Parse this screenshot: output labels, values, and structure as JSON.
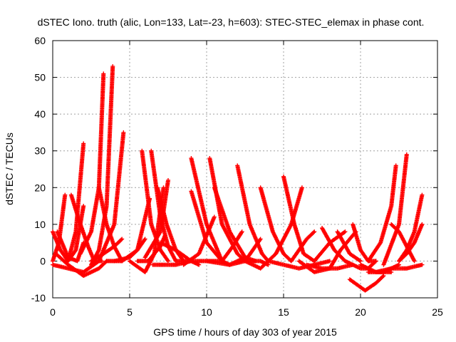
{
  "chart_data": {
    "type": "scatter",
    "title": "dSTEC Iono. truth (alic, Lon=133, Lat=-23, h=603): STEC-STEC_elemax in phase cont.",
    "xlabel": "GPS time / hours of day 303 of year 2015",
    "ylabel": "dSTEC  / TECUs",
    "xlim": [
      0,
      25
    ],
    "ylim": [
      -10,
      60
    ],
    "xticks": [
      "0",
      "5",
      "10",
      "15",
      "20",
      "25"
    ],
    "yticks": [
      "-10",
      "0",
      "10",
      "20",
      "30",
      "40",
      "50",
      "60"
    ],
    "grid": true,
    "marker": "plus",
    "color": "#ff0000",
    "series": [
      {
        "x": [
          0.0,
          0.5,
          1.0,
          1.5,
          2.0
        ],
        "y": [
          8,
          3,
          0,
          3,
          15
        ]
      },
      {
        "x": [
          0.0,
          0.4,
          0.8
        ],
        "y": [
          0,
          5,
          18
        ]
      },
      {
        "x": [
          0.3,
          1.0,
          1.6,
          2.0
        ],
        "y": [
          8,
          1,
          0,
          5
        ]
      },
      {
        "x": [
          0.0,
          1.0,
          2.0,
          3.0,
          4.0,
          4.6
        ],
        "y": [
          -1,
          -2,
          -3,
          0,
          10,
          35
        ]
      },
      {
        "x": [
          0.2,
          1.0,
          2.0,
          3.0,
          3.5
        ],
        "y": [
          2,
          -1,
          -4,
          -2,
          0
        ]
      },
      {
        "x": [
          1.2,
          1.8,
          2.3,
          2.7,
          3.2
        ],
        "y": [
          18,
          10,
          4,
          0,
          0
        ]
      },
      {
        "x": [
          1.0,
          1.5,
          2.0
        ],
        "y": [
          0,
          8,
          32
        ]
      },
      {
        "x": [
          1.8,
          2.5,
          3.0,
          3.3
        ],
        "y": [
          2,
          8,
          20,
          51
        ]
      },
      {
        "x": [
          2.5,
          3.0,
          3.5,
          3.9
        ],
        "y": [
          -1,
          3,
          15,
          53
        ]
      },
      {
        "x": [
          2.5,
          3.3,
          4.0,
          4.5
        ],
        "y": [
          0,
          2,
          4,
          6
        ]
      },
      {
        "x": [
          3.0,
          3.5,
          4.0,
          4.5
        ],
        "y": [
          20,
          10,
          4,
          0
        ]
      },
      {
        "x": [
          3.5,
          4.5,
          5.5,
          6.3
        ],
        "y": [
          0,
          0,
          3,
          17
        ]
      },
      {
        "x": [
          4.0,
          5.0,
          5.5,
          6.0
        ],
        "y": [
          0,
          1,
          3,
          6
        ]
      },
      {
        "x": [
          5.8,
          6.4,
          7.0,
          7.5
        ],
        "y": [
          30,
          10,
          3,
          0
        ]
      },
      {
        "x": [
          6.4,
          7.0,
          7.5,
          8.0
        ],
        "y": [
          30,
          12,
          4,
          0
        ]
      },
      {
        "x": [
          5.0,
          6.0,
          6.6,
          7.2
        ],
        "y": [
          0,
          -3,
          2,
          20
        ]
      },
      {
        "x": [
          6.8,
          7.4,
          8.0,
          8.5
        ],
        "y": [
          20,
          10,
          3,
          0
        ]
      },
      {
        "x": [
          6.0,
          7.0,
          7.5
        ],
        "y": [
          1,
          8,
          22
        ]
      },
      {
        "x": [
          5.5,
          6.2,
          7.0,
          7.3
        ],
        "y": [
          0,
          0,
          4,
          7
        ]
      },
      {
        "x": [
          6.5,
          8.0,
          9.0
        ],
        "y": [
          -1,
          -1,
          0
        ]
      },
      {
        "x": [
          7.0,
          8.0,
          9.0,
          9.5
        ],
        "y": [
          5,
          3,
          0,
          -1
        ]
      },
      {
        "x": [
          8.0,
          9.0,
          10.0,
          11.0
        ],
        "y": [
          0,
          0,
          0,
          0
        ]
      },
      {
        "x": [
          9.0,
          10.0,
          11.0
        ],
        "y": [
          28,
          10,
          0
        ]
      },
      {
        "x": [
          9.0,
          10.0,
          11.0,
          11.5
        ],
        "y": [
          19,
          5,
          0,
          -1
        ]
      },
      {
        "x": [
          8.5,
          9.5,
          10.5
        ],
        "y": [
          -1,
          2,
          12
        ]
      },
      {
        "x": [
          10.2,
          11.0,
          12.0,
          12.5
        ],
        "y": [
          28,
          10,
          2,
          0
        ]
      },
      {
        "x": [
          10.5,
          11.5,
          12.5,
          13.2
        ],
        "y": [
          20,
          8,
          1,
          0
        ]
      },
      {
        "x": [
          10.0,
          11.5,
          12.5
        ],
        "y": [
          0,
          -1,
          1
        ]
      },
      {
        "x": [
          11.0,
          11.7,
          12.3
        ],
        "y": [
          0,
          4,
          8
        ]
      },
      {
        "x": [
          11.5,
          12.5,
          13.5,
          14.0
        ],
        "y": [
          -1,
          0,
          0,
          -1
        ]
      },
      {
        "x": [
          12.0,
          12.8,
          13.6,
          14.0
        ],
        "y": [
          26,
          10,
          2,
          0
        ]
      },
      {
        "x": [
          12.5,
          13.0,
          13.5
        ],
        "y": [
          0,
          3,
          6
        ]
      },
      {
        "x": [
          13.5,
          14.3,
          15.0,
          15.5
        ],
        "y": [
          20,
          8,
          2,
          0
        ]
      },
      {
        "x": [
          12.5,
          13.5,
          14.5,
          15.5,
          16.2
        ],
        "y": [
          0,
          -2,
          2,
          10,
          20
        ]
      },
      {
        "x": [
          15.0,
          15.7,
          16.3,
          17.0
        ],
        "y": [
          23,
          10,
          2,
          0
        ]
      },
      {
        "x": [
          15.5,
          16.0,
          16.5,
          17.0
        ],
        "y": [
          0,
          3,
          6,
          8
        ]
      },
      {
        "x": [
          14.0,
          15.0,
          16.0,
          17.0,
          18.0
        ],
        "y": [
          0,
          -1,
          -2,
          -1,
          0
        ]
      },
      {
        "x": [
          16.0,
          17.0,
          18.0
        ],
        "y": [
          0,
          -3,
          -2
        ]
      },
      {
        "x": [
          16.5,
          17.5,
          18.5,
          19.5
        ],
        "y": [
          -1,
          -2,
          -2,
          -1
        ]
      },
      {
        "x": [
          17.5,
          18.3,
          19.0
        ],
        "y": [
          9,
          3,
          0
        ]
      },
      {
        "x": [
          18.0,
          18.7,
          19.3,
          19.7
        ],
        "y": [
          -2,
          3,
          6,
          8
        ]
      },
      {
        "x": [
          18.5,
          19.3,
          20.0
        ],
        "y": [
          8,
          2,
          0
        ]
      },
      {
        "x": [
          17.0,
          18.0,
          19.0
        ],
        "y": [
          0,
          5,
          8
        ]
      },
      {
        "x": [
          19.0,
          20.0,
          20.5,
          21.0
        ],
        "y": [
          0,
          -2,
          -2,
          0
        ]
      },
      {
        "x": [
          19.5,
          20.0,
          20.5,
          21.0
        ],
        "y": [
          10,
          3,
          0,
          0
        ]
      },
      {
        "x": [
          19.3,
          20.3,
          21.0,
          21.5
        ],
        "y": [
          -5,
          -8,
          -6,
          -4
        ]
      },
      {
        "x": [
          20.0,
          21.0,
          22.0
        ],
        "y": [
          -1,
          -3,
          -3
        ]
      },
      {
        "x": [
          20.5,
          21.3,
          22.0,
          22.3
        ],
        "y": [
          0,
          5,
          15,
          26
        ]
      },
      {
        "x": [
          21.5,
          22.5,
          23.0
        ],
        "y": [
          -1,
          10,
          29
        ]
      },
      {
        "x": [
          22.0,
          22.5,
          23.0,
          23.5
        ],
        "y": [
          10,
          8,
          4,
          0
        ]
      },
      {
        "x": [
          22.5,
          23.0,
          23.5,
          24.0
        ],
        "y": [
          0,
          3,
          8,
          18
        ]
      },
      {
        "x": [
          22.5,
          23.0,
          23.5,
          24.0
        ],
        "y": [
          0,
          2,
          5,
          10
        ]
      },
      {
        "x": [
          21.0,
          22.0,
          23.0,
          24.0
        ],
        "y": [
          -3,
          -2,
          -2,
          -1
        ]
      },
      {
        "x": [
          20.5,
          21.5,
          22.5
        ],
        "y": [
          -3,
          -3,
          -1
        ]
      }
    ]
  }
}
